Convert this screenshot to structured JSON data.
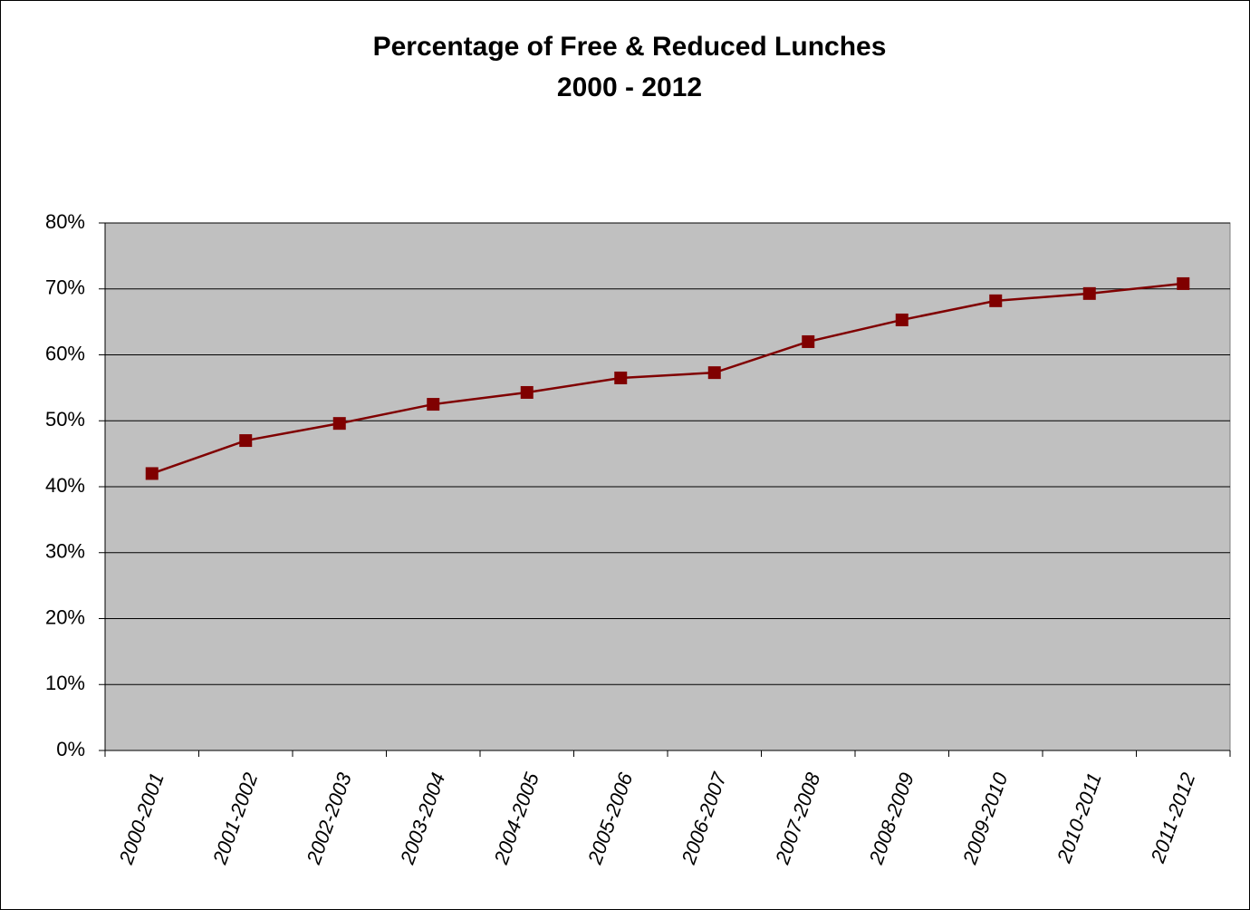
{
  "chart_data": {
    "type": "line",
    "title": "Percentage of Free & Reduced Lunches",
    "subtitle": "2000 - 2012",
    "categories": [
      "2000-2001",
      "2001-2002",
      "2002-2003",
      "2003-2004",
      "2004-2005",
      "2005-2006",
      "2006-2007",
      "2007-2008",
      "2008-2009",
      "2009-2010",
      "2010-2011",
      "2011-2012"
    ],
    "series": [
      {
        "name": "Free & Reduced Lunches",
        "color": "#800000",
        "values": [
          42,
          47,
          49.6,
          52.5,
          54.3,
          56.5,
          57.3,
          62,
          65.3,
          68.2,
          69.3,
          70.8
        ]
      }
    ],
    "ylim": [
      0,
      80
    ],
    "yticks": [
      {
        "value": 0,
        "label": "0%"
      },
      {
        "value": 10,
        "label": "10%"
      },
      {
        "value": 20,
        "label": "20%"
      },
      {
        "value": 30,
        "label": "30%"
      },
      {
        "value": 40,
        "label": "40%"
      },
      {
        "value": 50,
        "label": "50%"
      },
      {
        "value": 60,
        "label": "60%"
      },
      {
        "value": 70,
        "label": "70%"
      },
      {
        "value": 80,
        "label": "80%"
      }
    ],
    "grid": true,
    "plot_background": "#c0c0c0"
  }
}
